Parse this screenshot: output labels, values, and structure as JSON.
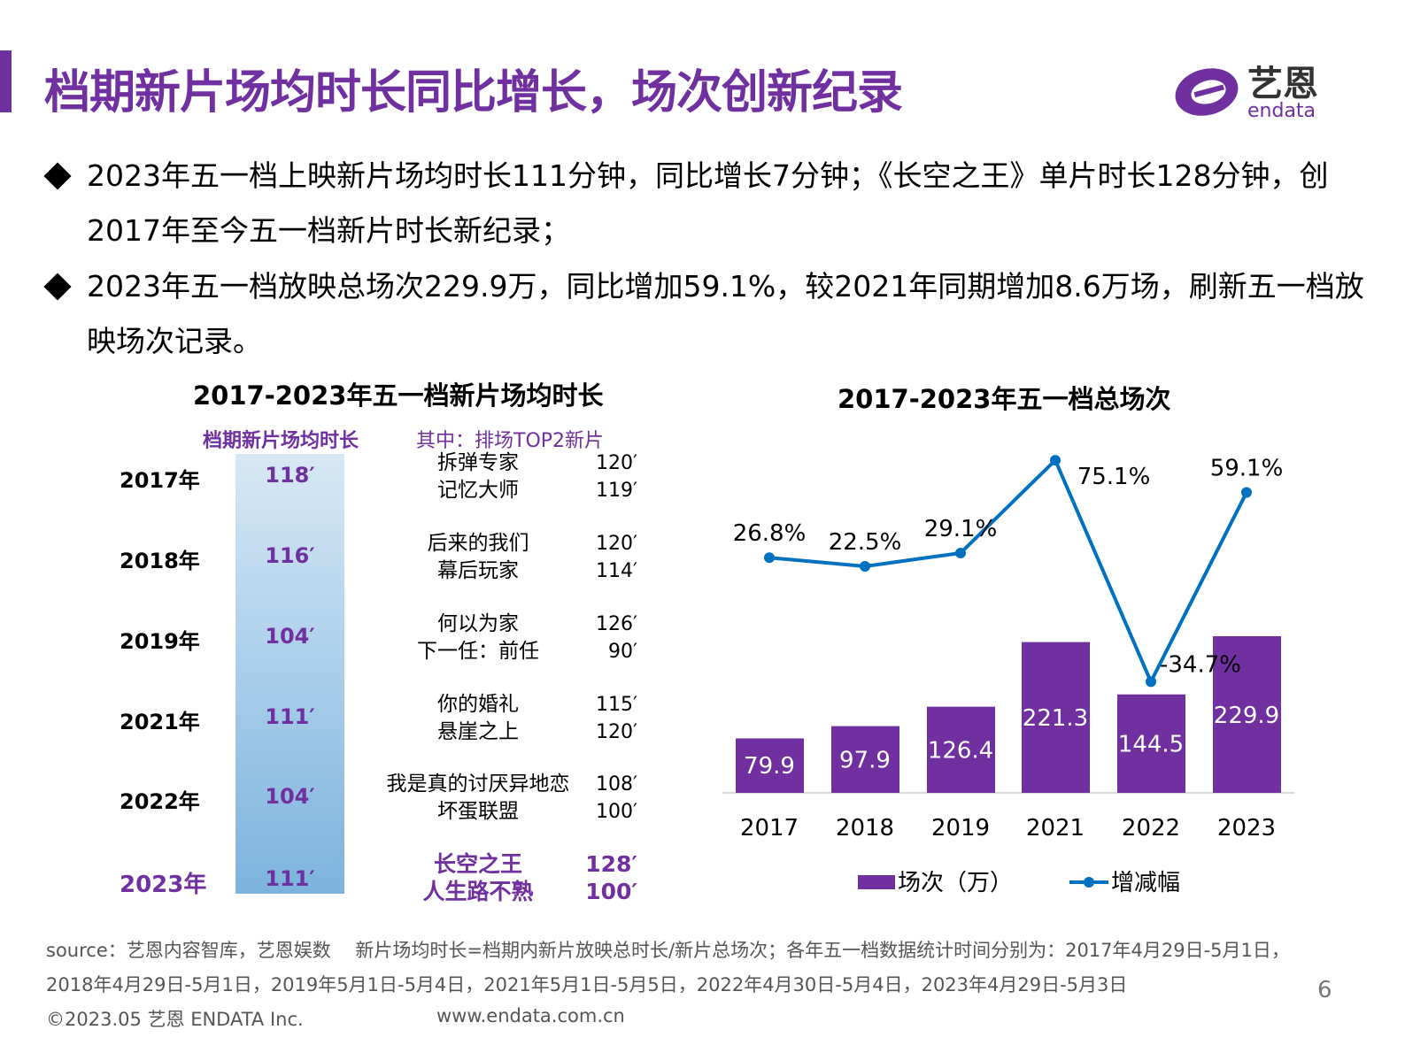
{
  "header": {
    "title": "档期新片场均时长同比增长，场次创新纪录",
    "logo_cn": "艺恩",
    "logo_en": "endata",
    "brand_color": "#7030a0"
  },
  "bullets": [
    "2023年五一档上映新片场均时长111分钟，同比增长7分钟；《长空之王》单片时长128分钟，创2017年至今五一档新片时长新纪录；",
    "2023年五一档放映总场次229.9万，同比增加59.1%，较2021年同期增加8.6万场，刷新五一档放映场次记录。"
  ],
  "left_chart": {
    "title": "2017-2023年五一档新片场均时长",
    "col1_header": "档期新片场均时长",
    "col2_header": "其中：排场TOP2新片",
    "rows": [
      {
        "year": "2017年",
        "avg": "118′",
        "films": [
          [
            "拆弹专家",
            "120′"
          ],
          [
            "记忆大师",
            "119′"
          ]
        ]
      },
      {
        "year": "2018年",
        "avg": "116′",
        "films": [
          [
            "后来的我们",
            "120′"
          ],
          [
            "幕后玩家",
            "114′"
          ]
        ]
      },
      {
        "year": "2019年",
        "avg": "104′",
        "films": [
          [
            "何以为家",
            "126′"
          ],
          [
            "下一任：前任",
            "90′"
          ]
        ]
      },
      {
        "year": "2021年",
        "avg": "111′",
        "films": [
          [
            "你的婚礼",
            "115′"
          ],
          [
            "悬崖之上",
            "120′"
          ]
        ]
      },
      {
        "year": "2022年",
        "avg": "104′",
        "films": [
          [
            "我是真的讨厌异地恋",
            "108′"
          ],
          [
            "坏蛋联盟",
            "100′"
          ]
        ]
      },
      {
        "year": "2023年",
        "avg": "111′",
        "films": [
          [
            "长空之王",
            "128′"
          ],
          [
            "人生路不熟",
            "100′"
          ]
        ],
        "highlight": true
      }
    ]
  },
  "chart_data": {
    "type": "bar+line",
    "title": "2017-2023年五一档总场次",
    "categories": [
      "2017",
      "2018",
      "2019",
      "2021",
      "2022",
      "2023"
    ],
    "series": [
      {
        "name": "场次（万）",
        "type": "bar",
        "color": "#7030a0",
        "values": [
          79.9,
          97.9,
          126.4,
          221.3,
          144.5,
          229.9
        ],
        "labels": [
          "79.9",
          "97.9",
          "126.4",
          "221.3",
          "144.5",
          "229.9"
        ]
      },
      {
        "name": "增减幅",
        "type": "line",
        "color": "#0070c0",
        "values": [
          26.8,
          22.5,
          29.1,
          75.1,
          -34.7,
          59.1
        ],
        "labels": [
          "26.8%",
          "22.5%",
          "29.1%",
          "75.1%",
          "-34.7%",
          "59.1%"
        ]
      }
    ],
    "legend": "bottom"
  },
  "footer": {
    "source_line1": "source：艺恩内容智库，艺恩娱数　 新片场均时长=档期内新片放映总时长/新片总场次；各年五一档数据统计时间分别为：2017年4月29日-5月1日，",
    "source_line2": "2018年4月29日-5月1日，2019年5月1日-5月4日，2021年5月1日-5月5日，2022年4月30日-5月4日，2023年4月29日-5月3日",
    "copyright": "©2023.05 艺恩 ENDATA Inc.",
    "website": "www.endata.com.cn",
    "page": "6"
  }
}
